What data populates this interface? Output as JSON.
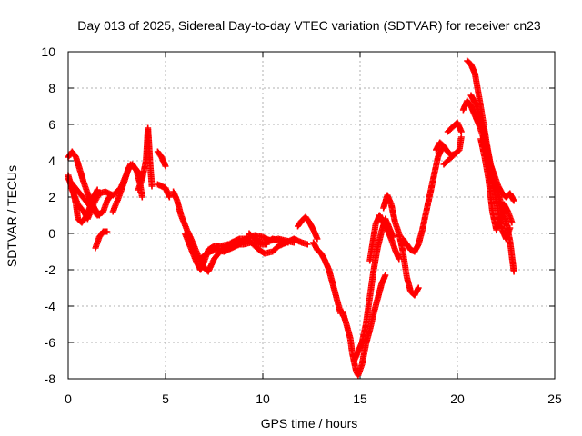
{
  "chart_data": {
    "type": "scatter",
    "title": "Day 013 of 2025, Sidereal Day-to-day VTEC variation (SDTVAR) for receiver cn23",
    "xlabel": "GPS time / hours",
    "ylabel": "SDTVAR / TECUs",
    "xlim": [
      0,
      25
    ],
    "ylim": [
      -8,
      10
    ],
    "x_ticks": [
      "0",
      "5",
      "10",
      "15",
      "20",
      "25"
    ],
    "y_ticks": [
      "10",
      "8",
      "6",
      "4",
      "2",
      "0",
      "-2",
      "-4",
      "-6",
      "-8"
    ],
    "grid": true,
    "marker": "+",
    "color": "#ff0000",
    "series": [
      {
        "name": "SDTVAR",
        "tracks": [
          [
            [
              0.0,
              3.2
            ],
            [
              0.2,
              2.4
            ],
            [
              0.5,
              1.6
            ],
            [
              0.8,
              1.2
            ],
            [
              1.0,
              0.8
            ],
            [
              1.3,
              1.6
            ],
            [
              1.6,
              2.2
            ],
            [
              1.9,
              2.3
            ],
            [
              2.3,
              2.1
            ],
            [
              2.7,
              2.5
            ],
            [
              3.2,
              3.8
            ],
            [
              3.6,
              3.4
            ],
            [
              3.8,
              3.0
            ]
          ],
          [
            [
              0.0,
              4.2
            ],
            [
              0.2,
              4.5
            ],
            [
              0.4,
              4.2
            ],
            [
              0.6,
              3.5
            ],
            [
              0.8,
              2.8
            ],
            [
              1.0,
              2.2
            ],
            [
              1.2,
              1.7
            ],
            [
              1.4,
              1.3
            ],
            [
              1.6,
              1.0
            ]
          ],
          [
            [
              0.0,
              3.0
            ],
            [
              0.3,
              2.6
            ],
            [
              0.6,
              2.2
            ],
            [
              0.9,
              1.8
            ],
            [
              1.2,
              1.4
            ],
            [
              1.5,
              1.0
            ],
            [
              1.8,
              1.2
            ],
            [
              2.0,
              1.8
            ],
            [
              2.2,
              2.1
            ]
          ],
          [
            [
              0.2,
              2.6
            ],
            [
              0.4,
              1.6
            ],
            [
              0.5,
              0.8
            ],
            [
              0.7,
              0.6
            ],
            [
              0.9,
              0.9
            ],
            [
              1.1,
              1.4
            ],
            [
              1.3,
              2.0
            ],
            [
              1.5,
              2.4
            ]
          ],
          [
            [
              1.4,
              -0.8
            ],
            [
              1.6,
              -0.2
            ],
            [
              1.8,
              0.1
            ],
            [
              2.0,
              0.1
            ]
          ],
          [
            [
              2.3,
              1.2
            ],
            [
              2.6,
              2.0
            ],
            [
              2.9,
              2.9
            ],
            [
              3.1,
              3.6
            ],
            [
              3.3,
              3.8
            ],
            [
              3.5,
              3.5
            ],
            [
              3.7,
              2.7
            ],
            [
              3.8,
              2.0
            ]
          ],
          [
            [
              3.6,
              2.4
            ],
            [
              3.8,
              3.0
            ],
            [
              4.0,
              4.0
            ],
            [
              4.1,
              5.8
            ],
            [
              4.2,
              4.0
            ],
            [
              4.3,
              2.6
            ]
          ],
          [
            [
              4.6,
              4.5
            ],
            [
              4.8,
              4.2
            ],
            [
              5.0,
              3.7
            ]
          ],
          [
            [
              4.6,
              2.7
            ],
            [
              4.8,
              2.6
            ],
            [
              5.0,
              2.5
            ],
            [
              5.2,
              2.0
            ]
          ],
          [
            [
              5.4,
              2.3
            ],
            [
              5.6,
              1.8
            ],
            [
              5.8,
              1.0
            ],
            [
              6.1,
              0.2
            ],
            [
              6.4,
              -0.5
            ],
            [
              6.7,
              -1.3
            ],
            [
              7.0,
              -1.9
            ],
            [
              7.2,
              -2.1
            ],
            [
              7.5,
              -1.4
            ],
            [
              7.8,
              -1.0
            ],
            [
              8.2,
              -0.7
            ],
            [
              8.6,
              -0.7
            ]
          ],
          [
            [
              6.0,
              0.0
            ],
            [
              6.3,
              -0.8
            ],
            [
              6.6,
              -1.6
            ],
            [
              6.8,
              -2.0
            ],
            [
              7.0,
              -1.5
            ],
            [
              7.2,
              -0.9
            ],
            [
              7.5,
              -0.7
            ],
            [
              7.8,
              -0.7
            ],
            [
              8.2,
              -0.6
            ],
            [
              8.6,
              -0.6
            ],
            [
              9.0,
              -0.6
            ],
            [
              9.4,
              -0.5
            ],
            [
              9.8,
              -0.6
            ],
            [
              10.2,
              -0.6
            ]
          ],
          [
            [
              6.8,
              -1.4
            ],
            [
              7.0,
              -1.2
            ],
            [
              7.3,
              -1.0
            ],
            [
              7.6,
              -0.9
            ],
            [
              8.0,
              -1.0
            ],
            [
              8.4,
              -0.8
            ],
            [
              8.8,
              -0.6
            ],
            [
              9.2,
              -0.2
            ],
            [
              9.6,
              -0.1
            ],
            [
              10.0,
              -0.2
            ],
            [
              10.4,
              -0.4
            ],
            [
              10.8,
              -0.3
            ],
            [
              11.2,
              -0.4
            ],
            [
              11.6,
              -0.5
            ]
          ],
          [
            [
              8.0,
              -0.8
            ],
            [
              8.4,
              -0.5
            ],
            [
              8.8,
              -0.3
            ],
            [
              9.2,
              -0.3
            ],
            [
              9.5,
              -0.6
            ],
            [
              9.8,
              -0.9
            ],
            [
              10.1,
              -1.1
            ],
            [
              10.5,
              -1.0
            ],
            [
              10.8,
              -0.7
            ],
            [
              11.2,
              -0.5
            ],
            [
              11.6,
              -0.3
            ],
            [
              12.0,
              -0.5
            ],
            [
              12.3,
              -0.6
            ]
          ],
          [
            [
              9.3,
              0.0
            ],
            [
              9.6,
              -0.3
            ],
            [
              9.9,
              -0.5
            ],
            [
              10.2,
              -0.5
            ],
            [
              10.5,
              -0.3
            ],
            [
              10.9,
              -0.4
            ],
            [
              11.3,
              -0.5
            ]
          ],
          [
            [
              11.8,
              0.4
            ],
            [
              12.0,
              0.7
            ],
            [
              12.2,
              0.9
            ],
            [
              12.4,
              0.6
            ],
            [
              12.6,
              0.2
            ],
            [
              12.8,
              -0.3
            ]
          ],
          [
            [
              12.6,
              -0.5
            ],
            [
              12.8,
              -0.9
            ],
            [
              13.0,
              -1.1
            ],
            [
              13.2,
              -1.5
            ],
            [
              13.4,
              -2.0
            ],
            [
              13.6,
              -2.8
            ],
            [
              13.8,
              -3.6
            ],
            [
              14.0,
              -4.4
            ]
          ],
          [
            [
              14.1,
              -4.3
            ],
            [
              14.3,
              -5.0
            ],
            [
              14.5,
              -5.8
            ],
            [
              14.6,
              -6.6
            ],
            [
              14.8,
              -7.6
            ],
            [
              14.9,
              -7.8
            ],
            [
              15.1,
              -7.2
            ],
            [
              15.3,
              -6.1
            ],
            [
              15.5,
              -5.3
            ],
            [
              15.7,
              -4.4
            ],
            [
              15.9,
              -3.6
            ],
            [
              16.1,
              -2.8
            ],
            [
              16.3,
              -2.3
            ]
          ],
          [
            [
              14.7,
              -7.0
            ],
            [
              14.9,
              -6.5
            ],
            [
              15.1,
              -6.0
            ],
            [
              15.3,
              -5.0
            ],
            [
              15.5,
              -3.5
            ],
            [
              15.7,
              -2.0
            ],
            [
              15.9,
              -0.8
            ],
            [
              16.1,
              0.1
            ],
            [
              16.3,
              0.8
            ],
            [
              16.5,
              0.3
            ],
            [
              16.7,
              -0.2
            ]
          ],
          [
            [
              15.5,
              -1.5
            ],
            [
              15.8,
              0.5
            ],
            [
              16.0,
              1.0
            ],
            [
              16.2,
              0.6
            ],
            [
              16.4,
              0.2
            ],
            [
              16.6,
              -0.3
            ],
            [
              16.8,
              -0.9
            ],
            [
              17.0,
              -1.4
            ]
          ],
          [
            [
              16.2,
              1.4
            ],
            [
              16.4,
              2.1
            ],
            [
              16.6,
              1.6
            ],
            [
              16.8,
              0.6
            ],
            [
              17.0,
              0.0
            ],
            [
              17.2,
              -1.0
            ],
            [
              17.4,
              -2.4
            ],
            [
              17.6,
              -3.2
            ],
            [
              17.8,
              -3.4
            ],
            [
              18.0,
              -3.0
            ]
          ],
          [
            [
              17.2,
              -0.3
            ],
            [
              17.4,
              -0.6
            ],
            [
              17.6,
              -0.9
            ],
            [
              17.8,
              -1.0
            ],
            [
              18.0,
              -0.6
            ],
            [
              18.2,
              0.2
            ],
            [
              18.4,
              1.2
            ],
            [
              18.6,
              2.2
            ],
            [
              18.8,
              3.2
            ],
            [
              19.0,
              4.2
            ],
            [
              19.2,
              4.7
            ]
          ],
          [
            [
              18.9,
              4.6
            ],
            [
              19.1,
              5.0
            ],
            [
              19.3,
              4.8
            ],
            [
              19.5,
              4.5
            ],
            [
              19.7,
              4.3
            ],
            [
              19.9,
              4.4
            ]
          ],
          [
            [
              19.3,
              3.8
            ],
            [
              19.6,
              4.1
            ],
            [
              19.9,
              4.4
            ],
            [
              20.1,
              4.6
            ],
            [
              20.2,
              5.3
            ]
          ],
          [
            [
              19.5,
              5.6
            ],
            [
              19.8,
              5.9
            ],
            [
              20.0,
              6.1
            ],
            [
              20.2,
              5.6
            ]
          ],
          [
            [
              20.3,
              6.8
            ],
            [
              20.5,
              7.3
            ],
            [
              20.7,
              7.0
            ],
            [
              20.9,
              6.5
            ],
            [
              21.1,
              6.0
            ],
            [
              21.3,
              5.4
            ],
            [
              21.5,
              4.6
            ],
            [
              21.7,
              3.4
            ],
            [
              21.9,
              2.3
            ],
            [
              22.1,
              1.2
            ],
            [
              22.3,
              0.2
            ],
            [
              22.5,
              -0.3
            ],
            [
              22.7,
              0.3
            ]
          ],
          [
            [
              20.5,
              9.5
            ],
            [
              20.7,
              9.3
            ],
            [
              20.9,
              8.8
            ],
            [
              21.1,
              7.6
            ],
            [
              21.3,
              6.3
            ],
            [
              21.5,
              5.0
            ],
            [
              21.7,
              3.8
            ],
            [
              21.9,
              2.8
            ],
            [
              22.1,
              2.2
            ],
            [
              22.3,
              1.4
            ],
            [
              22.5,
              0.6
            ],
            [
              22.7,
              -0.4
            ],
            [
              22.9,
              -2.1
            ]
          ],
          [
            [
              20.7,
              7.6
            ],
            [
              20.9,
              7.2
            ],
            [
              21.1,
              6.6
            ],
            [
              21.3,
              5.8
            ],
            [
              21.5,
              4.8
            ],
            [
              21.7,
              3.8
            ],
            [
              21.9,
              3.2
            ],
            [
              22.1,
              2.6
            ],
            [
              22.3,
              2.2
            ],
            [
              22.5,
              2.0
            ],
            [
              22.7,
              2.2
            ],
            [
              22.9,
              1.8
            ]
          ],
          [
            [
              21.2,
              5.2
            ],
            [
              21.4,
              4.2
            ],
            [
              21.6,
              3.0
            ],
            [
              21.8,
              1.2
            ],
            [
              22.0,
              0.2
            ],
            [
              22.2,
              0.8
            ],
            [
              22.4,
              1.6
            ],
            [
              22.6,
              1.2
            ],
            [
              22.8,
              0.6
            ]
          ]
        ]
      }
    ]
  }
}
